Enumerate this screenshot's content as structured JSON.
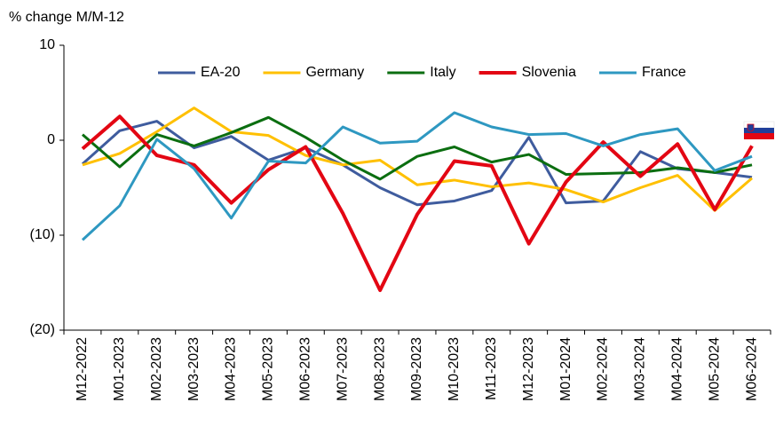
{
  "chart_data": {
    "type": "line",
    "y_axis_label": "% change M/M-12",
    "categories": [
      "M12-2022",
      "M01-2023",
      "M02-2023",
      "M03-2023",
      "M04-2023",
      "M05-2023",
      "M06-2023",
      "M07-2023",
      "M08-2023",
      "M09-2023",
      "M10-2023",
      "M11-2023",
      "M12-2023",
      "M01-2024",
      "M02-2024",
      "M03-2024",
      "M04-2024",
      "M05-2024",
      "M06-2024"
    ],
    "series": [
      {
        "name": "EA-20",
        "color": "#3f5c9e",
        "values": [
          -2.5,
          1.0,
          2.0,
          -0.8,
          0.4,
          -2.1,
          -0.8,
          -2.6,
          -5.0,
          -6.8,
          -6.4,
          -5.3,
          0.3,
          -6.6,
          -6.4,
          -1.2,
          -3.0,
          -3.4,
          -3.9
        ]
      },
      {
        "name": "Germany",
        "color": "#ffc000",
        "values": [
          -2.6,
          -1.4,
          0.9,
          3.4,
          0.9,
          0.5,
          -1.6,
          -2.6,
          -2.1,
          -4.7,
          -4.2,
          -4.9,
          -4.5,
          -5.2,
          -6.5,
          -5.0,
          -3.7,
          -7.4,
          -4.0
        ]
      },
      {
        "name": "Italy",
        "color": "#0b6e10",
        "values": [
          0.6,
          -2.8,
          0.6,
          -0.6,
          0.8,
          2.4,
          0.3,
          -2.1,
          -4.1,
          -1.7,
          -0.7,
          -2.3,
          -1.5,
          -3.6,
          -3.5,
          -3.4,
          -2.9,
          -3.4,
          -2.6
        ]
      },
      {
        "name": "Slovenia",
        "color": "#e30613",
        "values": [
          -0.9,
          2.5,
          -1.6,
          -2.6,
          -6.6,
          -3.1,
          -0.7,
          -7.7,
          -15.8,
          -7.8,
          -2.2,
          -2.7,
          -10.9,
          -4.4,
          -0.2,
          -3.8,
          -0.4,
          -7.3,
          -0.6
        ]
      },
      {
        "name": "France",
        "color": "#2e98c1",
        "values": [
          -10.5,
          -6.9,
          0.1,
          -3.0,
          -8.2,
          -2.2,
          -2.4,
          1.4,
          -0.3,
          -0.1,
          2.9,
          1.4,
          0.6,
          0.7,
          -0.6,
          0.6,
          1.2,
          -3.2,
          -1.7
        ]
      }
    ],
    "ylim": [
      -20,
      10
    ],
    "yticks": [
      {
        "value": -20,
        "label": "(20)"
      },
      {
        "value": -10,
        "label": "(10)"
      },
      0,
      10
    ],
    "legend": "top"
  }
}
